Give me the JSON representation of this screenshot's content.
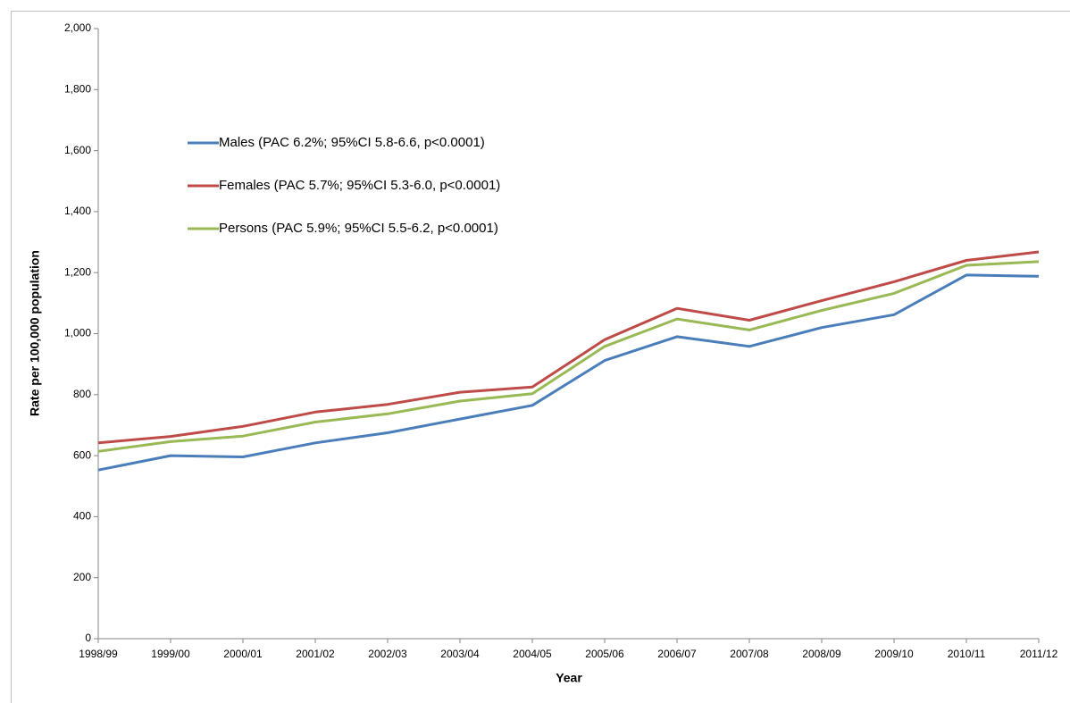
{
  "chart_data": {
    "type": "line",
    "x_label": "Year",
    "y_label": "Rate per 100,000 population",
    "categories": [
      "1998/99",
      "1999/00",
      "2000/01",
      "2001/02",
      "2002/03",
      "2003/04",
      "2004/05",
      "2005/06",
      "2006/07",
      "2007/08",
      "2008/09",
      "2009/10",
      "2010/11",
      "2011/12"
    ],
    "series": [
      {
        "name": "Males (PAC 6.2%; 95%CI 5.8-6.6, p<0.0001)",
        "color": "#4a7ebb",
        "values": [
          553,
          600,
          596,
          642,
          675,
          720,
          765,
          912,
          990,
          958,
          1020,
          1062,
          1192,
          1188
        ]
      },
      {
        "name": "Females (PAC 5.7%; 95%CI 5.3-6.0, p<0.0001)",
        "color": "#be4b48",
        "values": [
          642,
          663,
          696,
          743,
          768,
          808,
          825,
          980,
          1083,
          1044,
          1108,
          1170,
          1240,
          1268
        ]
      },
      {
        "name": "Persons (PAC 5.9%; 95%CI 5.5-6.2, p<0.0001)",
        "color": "#98b954",
        "values": [
          614,
          646,
          664,
          710,
          737,
          779,
          803,
          958,
          1048,
          1012,
          1076,
          1132,
          1224,
          1236
        ]
      }
    ],
    "ylim": [
      0,
      2000
    ],
    "yticks": [
      0,
      200,
      400,
      600,
      800,
      {
        "value": 1000,
        "label": "1,000"
      },
      {
        "value": 1200,
        "label": "1,200"
      },
      {
        "value": 1400,
        "label": "1,400"
      },
      {
        "value": 1600,
        "label": "1,600"
      },
      {
        "value": 1800,
        "label": "1,800"
      },
      {
        "value": 2000,
        "label": "2,000"
      }
    ],
    "legend": "upper left"
  }
}
